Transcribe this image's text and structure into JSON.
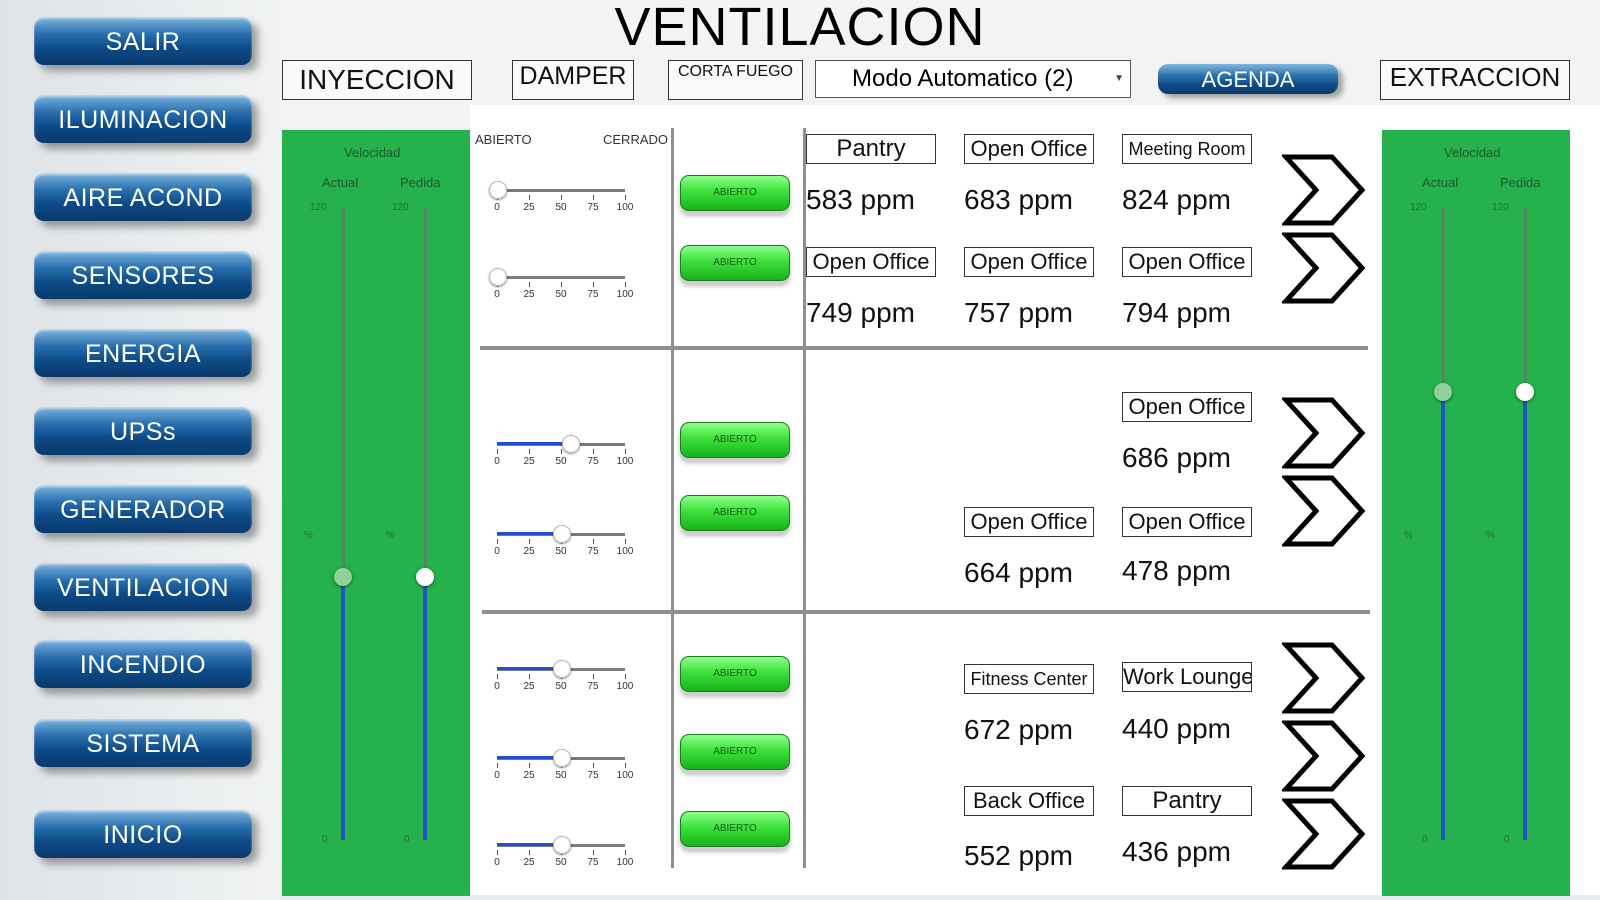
{
  "title": "VENTILACION",
  "nav": [
    {
      "label": "SALIR"
    },
    {
      "label": "ILUMINACION"
    },
    {
      "label": "AIRE ACOND"
    },
    {
      "label": "SENSORES"
    },
    {
      "label": "ENERGIA"
    },
    {
      "label": "UPSs"
    },
    {
      "label": "GENERADOR"
    },
    {
      "label": "VENTILACION"
    },
    {
      "label": "INCENDIO"
    },
    {
      "label": "SISTEMA"
    },
    {
      "label": "INICIO"
    }
  ],
  "header": {
    "inyeccion": "INYECCION",
    "damper": "DAMPER",
    "corta_fuego": "CORTA FUEGO",
    "mode_selected": "Modo Automatico (2)",
    "agenda": "AGENDA",
    "extraccion": "EXTRACCION"
  },
  "inyeccion_panel": {
    "velocidad": "Velocidad",
    "actual": "Actual",
    "pedida": "Pedida",
    "tick_max": "120",
    "tick_min": "0",
    "unit": "%",
    "actual_value": 50,
    "pedida_value": 50
  },
  "extraccion_panel": {
    "velocidad": "Velocidad",
    "actual": "Actual",
    "pedida": "Pedida",
    "tick_max": "120",
    "tick_min": "0",
    "unit": "%",
    "actual_value": 85,
    "pedida_value": 85
  },
  "damper_labels": {
    "abierto": "ABIERTO",
    "cerrado": "CERRADO"
  },
  "slider_ticks": [
    "0",
    "25",
    "50",
    "75",
    "100"
  ],
  "dampers": [
    {
      "value": 0,
      "button": "ABIERTO"
    },
    {
      "value": 0,
      "button": "ABIERTO"
    },
    {
      "value": 57,
      "button": "ABIERTO"
    },
    {
      "value": 50,
      "button": "ABIERTO"
    },
    {
      "value": 50,
      "button": "ABIERTO"
    },
    {
      "value": 50,
      "button": "ABIERTO"
    },
    {
      "value": 50,
      "button": "ABIERTO"
    }
  ],
  "rooms": [
    {
      "name": "Pantry",
      "ppm": "583 ppm"
    },
    {
      "name": "Open Office",
      "ppm": "683 ppm"
    },
    {
      "name": "Meeting Room",
      "ppm": "824 ppm"
    },
    {
      "name": "Open Office",
      "ppm": "749 ppm"
    },
    {
      "name": "Open Office",
      "ppm": "757 ppm"
    },
    {
      "name": "Open Office",
      "ppm": "794 ppm"
    },
    {
      "name": "Open Office",
      "ppm": "686 ppm"
    },
    {
      "name": "Open Office",
      "ppm": "664 ppm"
    },
    {
      "name": "Open Office",
      "ppm": "478 ppm"
    },
    {
      "name": "Fitness Center",
      "ppm": "672 ppm"
    },
    {
      "name": "Work Lounge",
      "ppm": "440 ppm"
    },
    {
      "name": "Back Office",
      "ppm": "552 ppm"
    },
    {
      "name": "Pantry",
      "ppm": "436 ppm"
    }
  ],
  "colors": {
    "panel_green": "#25b14b",
    "button_blue": "#0d4a86",
    "button_green": "#3ee03c",
    "fill_blue": "#1e56c8"
  }
}
